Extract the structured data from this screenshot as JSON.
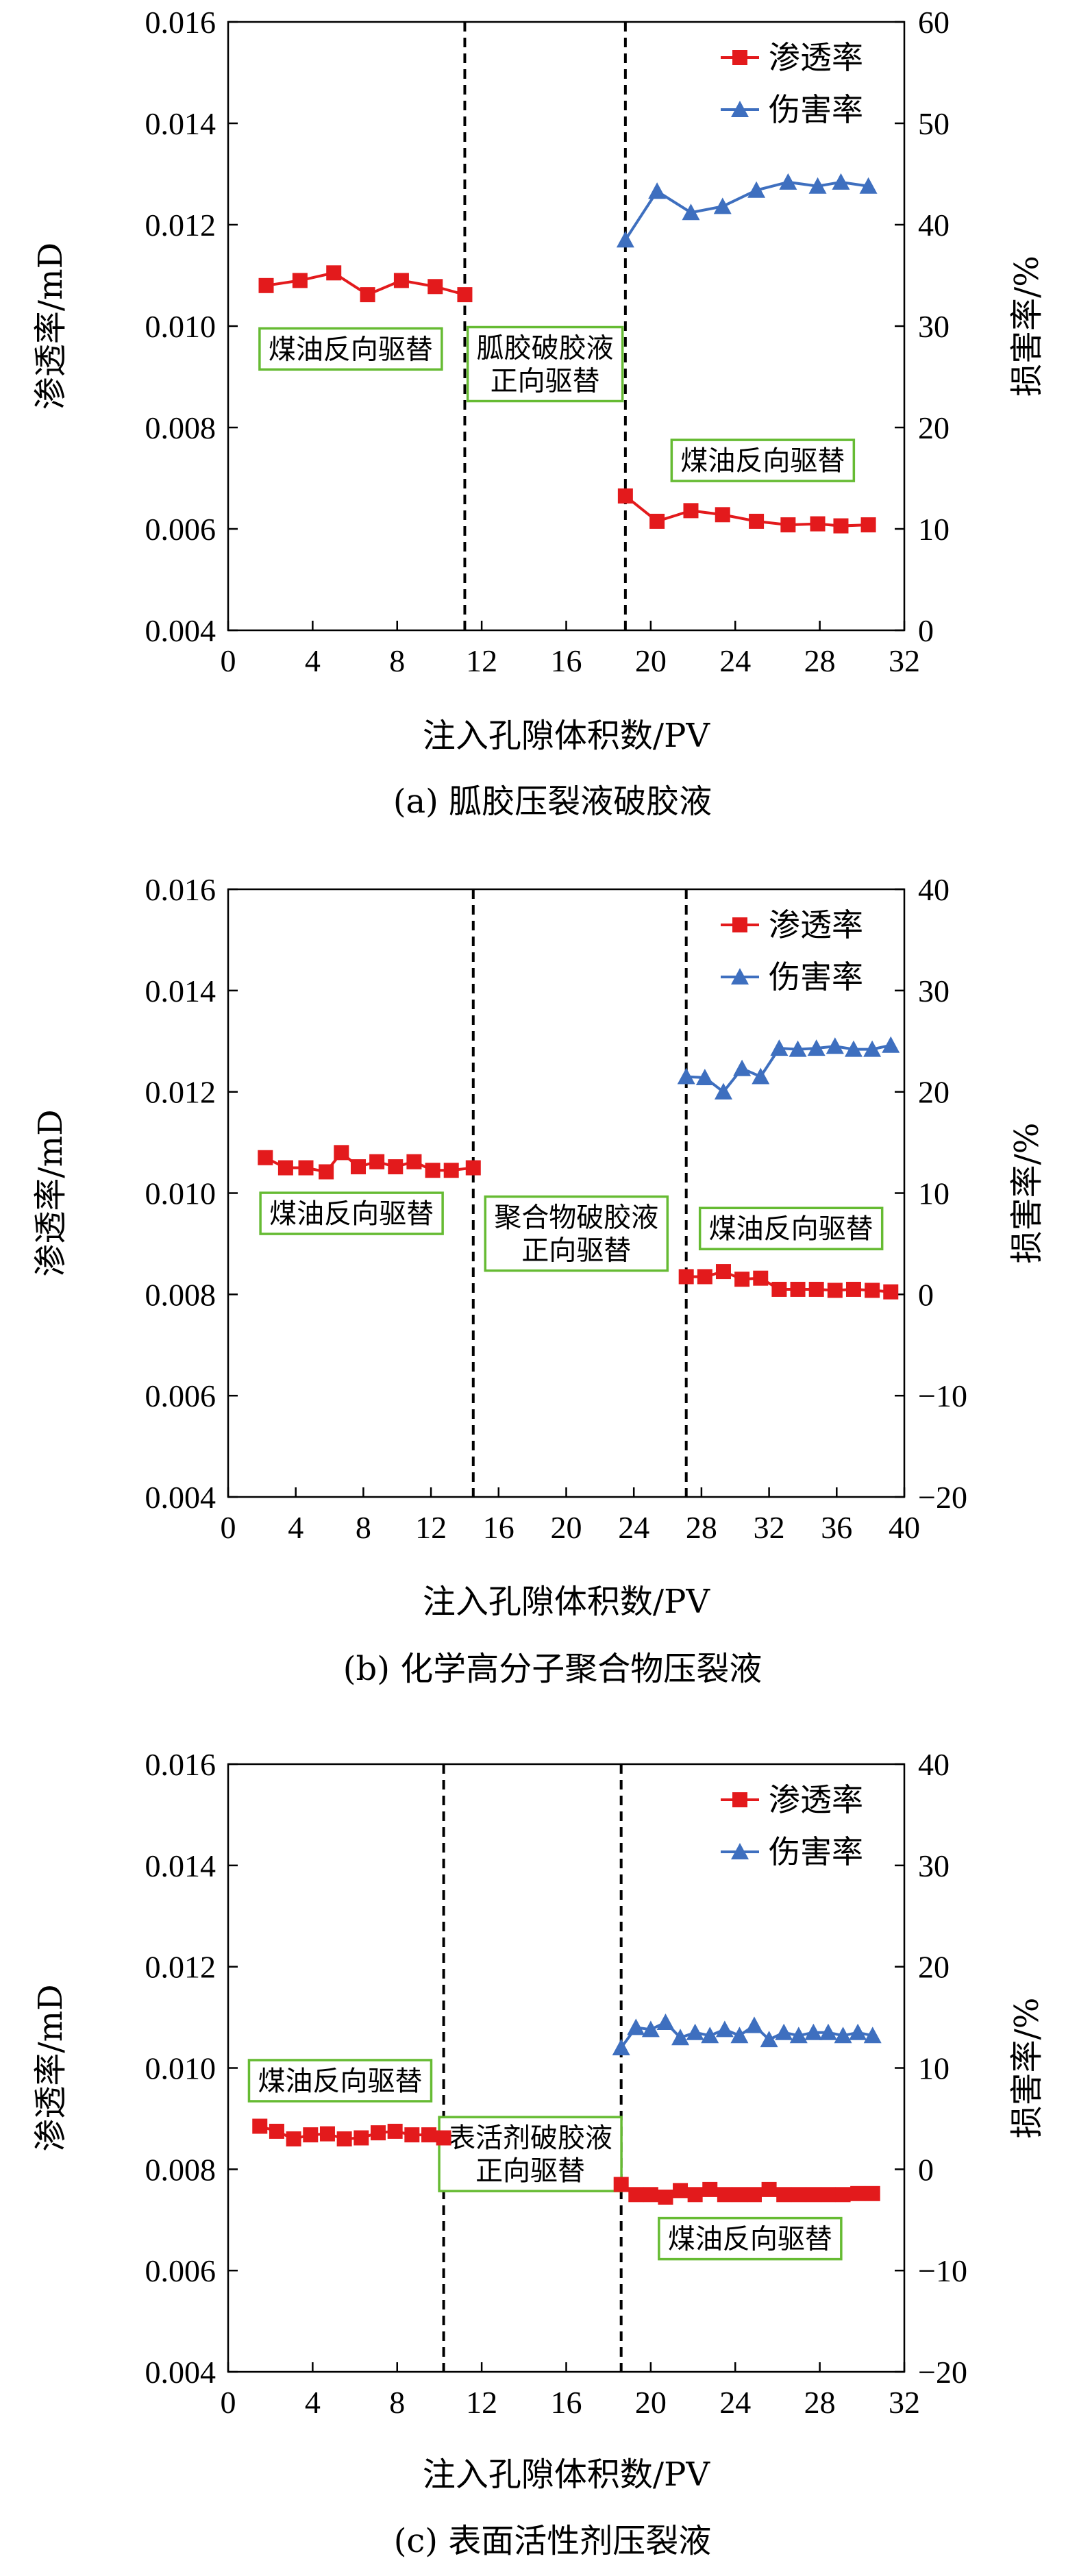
{
  "colors": {
    "permeability": "#e31a1c",
    "damage": "#3e6fbf",
    "annotation_border": "#66bb33"
  },
  "chart_data": [
    {
      "type": "line",
      "caption": "(a) 胍胶压裂液破胶液",
      "xlabel": "注入孔隙体积数/PV",
      "ylabel": "渗透率/mD",
      "y2label": "损害率/%",
      "xlim": [
        0,
        32
      ],
      "xticks": [
        0,
        4,
        8,
        12,
        16,
        20,
        24,
        28,
        32
      ],
      "ylim": [
        0.004,
        0.016
      ],
      "yticks": [
        "0.004",
        "0.006",
        "0.008",
        "0.010",
        "0.012",
        "0.014",
        "0.016"
      ],
      "y2lim": [
        0,
        60
      ],
      "y2ticks": [
        0,
        10,
        20,
        30,
        40,
        50,
        60
      ],
      "grid": false,
      "legend": {
        "position": "top-right",
        "entries": [
          "渗透率",
          "伤害率"
        ]
      },
      "vlines": [
        11.2,
        18.8
      ],
      "annotations": [
        {
          "text": [
            "煤油反向驱替"
          ],
          "x": 5.8,
          "y": 0.00955
        },
        {
          "text": [
            "胍胶破胶液",
            "正向驱替"
          ],
          "x": 15.0,
          "y": 0.00925
        },
        {
          "text": [
            "煤油反向驱替"
          ],
          "x": 25.3,
          "y": 0.00735
        }
      ],
      "series": [
        {
          "name": "渗透率",
          "axis": "left",
          "marker": "square",
          "segments": [
            {
              "x": [
                1.8,
                3.4,
                5.0,
                6.6,
                8.2,
                9.8,
                11.2
              ],
              "y": [
                0.0108,
                0.0109,
                0.01105,
                0.01062,
                0.0109,
                0.01078,
                0.01062
              ]
            },
            {
              "x": [
                18.8,
                20.3,
                21.9,
                23.4,
                25.0,
                26.5,
                27.9,
                29.0,
                30.3
              ],
              "y": [
                0.00665,
                0.00615,
                0.00636,
                0.00628,
                0.00615,
                0.00608,
                0.0061,
                0.00606,
                0.00608
              ]
            }
          ]
        },
        {
          "name": "伤害率",
          "axis": "right",
          "marker": "triangle",
          "segments": [
            {
              "x": [
                18.8,
                20.3,
                21.9,
                23.4,
                25.0,
                26.5,
                27.9,
                29.0,
                30.3
              ],
              "y": [
                38.5,
                43.3,
                41.2,
                41.8,
                43.4,
                44.2,
                43.8,
                44.2,
                43.8
              ]
            }
          ]
        }
      ]
    },
    {
      "type": "line",
      "caption": "(b) 化学高分子聚合物压裂液",
      "xlabel": "注入孔隙体积数/PV",
      "ylabel": "渗透率/mD",
      "y2label": "损害率/%",
      "xlim": [
        0,
        40
      ],
      "xticks": [
        0,
        4,
        8,
        12,
        16,
        20,
        24,
        28,
        32,
        36,
        40
      ],
      "ylim": [
        0.004,
        0.016
      ],
      "yticks": [
        "0.004",
        "0.006",
        "0.008",
        "0.010",
        "0.012",
        "0.014",
        "0.016"
      ],
      "y2lim": [
        -20,
        40
      ],
      "y2ticks": [
        -20,
        -10,
        0,
        10,
        20,
        30,
        40
      ],
      "grid": false,
      "legend": {
        "position": "top-right",
        "entries": [
          "渗透率",
          "伤害率"
        ]
      },
      "vlines": [
        14.5,
        27.1
      ],
      "annotations": [
        {
          "text": [
            "煤油反向驱替"
          ],
          "x": 7.3,
          "y": 0.0096
        },
        {
          "text": [
            "聚合物破胶液",
            "正向驱替"
          ],
          "x": 20.6,
          "y": 0.0092
        },
        {
          "text": [
            "煤油反向驱替"
          ],
          "x": 33.3,
          "y": 0.0093
        }
      ],
      "series": [
        {
          "name": "渗透率",
          "axis": "left",
          "marker": "square",
          "segments": [
            {
              "x": [
                2.2,
                3.4,
                4.6,
                5.8,
                6.7,
                7.7,
                8.8,
                9.9,
                11.0,
                12.1,
                13.2,
                14.5
              ],
              "y": [
                0.0107,
                0.0105,
                0.0105,
                0.01042,
                0.0108,
                0.01052,
                0.01062,
                0.01052,
                0.01062,
                0.01045,
                0.01045,
                0.0105
              ]
            },
            {
              "x": [
                27.1,
                28.2,
                29.3,
                30.4,
                31.5,
                32.6,
                33.7,
                34.8,
                35.9,
                37.0,
                38.1,
                39.2
              ],
              "y": [
                0.00835,
                0.00835,
                0.00845,
                0.0083,
                0.00832,
                0.0081,
                0.0081,
                0.0081,
                0.00808,
                0.0081,
                0.00808,
                0.00805
              ]
            }
          ]
        },
        {
          "name": "伤害率",
          "axis": "right",
          "marker": "triangle",
          "segments": [
            {
              "x": [
                27.1,
                28.2,
                29.3,
                30.4,
                31.5,
                32.6,
                33.7,
                34.8,
                35.9,
                37.0,
                38.1,
                39.2
              ],
              "y": [
                21.5,
                21.4,
                20.0,
                22.3,
                21.5,
                24.3,
                24.2,
                24.3,
                24.5,
                24.2,
                24.2,
                24.6
              ]
            }
          ]
        }
      ]
    },
    {
      "type": "line",
      "caption": "(c) 表面活性剂压裂液",
      "xlabel": "注入孔隙体积数/PV",
      "ylabel": "渗透率/mD",
      "y2label": "损害率/%",
      "xlim": [
        0,
        32
      ],
      "xticks": [
        0,
        4,
        8,
        12,
        16,
        20,
        24,
        28,
        32
      ],
      "ylim": [
        0.004,
        0.016
      ],
      "yticks": [
        "0.004",
        "0.006",
        "0.008",
        "0.010",
        "0.012",
        "0.014",
        "0.016"
      ],
      "y2lim": [
        -20,
        40
      ],
      "y2ticks": [
        -20,
        -10,
        0,
        10,
        20,
        30,
        40
      ],
      "grid": false,
      "legend": {
        "position": "top-right",
        "entries": [
          "渗透率",
          "伤害率"
        ]
      },
      "vlines": [
        10.2,
        18.6
      ],
      "annotations": [
        {
          "text": [
            "煤油反向驱替"
          ],
          "x": 5.3,
          "y": 0.00975
        },
        {
          "text": [
            "表活剂破胶液",
            "正向驱替"
          ],
          "x": 14.3,
          "y": 0.0083
        },
        {
          "text": [
            "煤油反向驱替"
          ],
          "x": 24.7,
          "y": 0.00663
        }
      ],
      "series": [
        {
          "name": "渗透率",
          "axis": "left",
          "marker": "square",
          "segments": [
            {
              "x": [
                1.5,
                2.3,
                3.1,
                3.9,
                4.7,
                5.5,
                6.3,
                7.1,
                7.9,
                8.7,
                9.5,
                10.2
              ],
              "y": [
                0.00885,
                0.00875,
                0.0086,
                0.00868,
                0.0087,
                0.0086,
                0.00862,
                0.00872,
                0.00875,
                0.00868,
                0.00868,
                0.00862
              ]
            },
            {
              "x": [
                18.6,
                19.3,
                20.0,
                20.7,
                21.4,
                22.1,
                22.8,
                23.5,
                24.2,
                24.9,
                25.6,
                26.3,
                27.0,
                27.7,
                28.4,
                29.1,
                29.8,
                30.5
              ],
              "y": [
                0.0077,
                0.0075,
                0.0075,
                0.00745,
                0.00758,
                0.0075,
                0.0076,
                0.0075,
                0.0075,
                0.0075,
                0.0076,
                0.0075,
                0.0075,
                0.0075,
                0.0075,
                0.0075,
                0.00752,
                0.00752
              ]
            }
          ]
        },
        {
          "name": "伤害率",
          "axis": "right",
          "marker": "triangle",
          "segments": [
            {
              "x": [
                18.6,
                19.3,
                20.0,
                20.7,
                21.4,
                22.1,
                22.8,
                23.5,
                24.2,
                24.9,
                25.6,
                26.3,
                27.0,
                27.7,
                28.4,
                29.1,
                29.8,
                30.5
              ],
              "y": [
                12.0,
                14.0,
                13.8,
                14.5,
                13.0,
                13.5,
                13.2,
                13.8,
                13.2,
                14.2,
                12.8,
                13.5,
                13.2,
                13.5,
                13.5,
                13.2,
                13.5,
                13.2
              ]
            }
          ]
        }
      ]
    }
  ]
}
